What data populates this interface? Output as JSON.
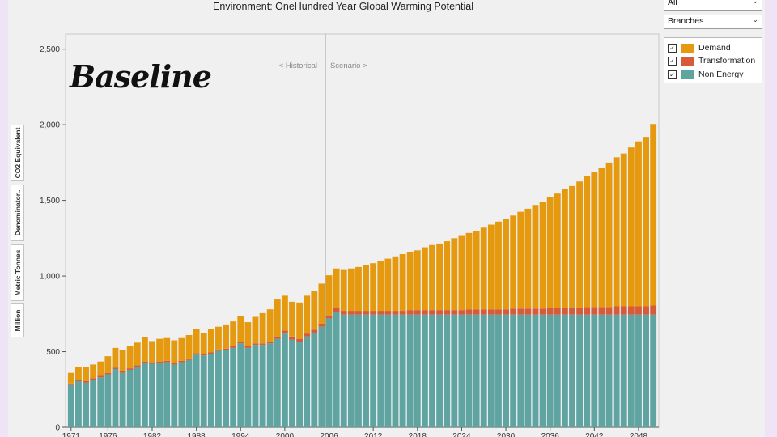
{
  "title": "Environment: OneHundred Year Global Warming Potential",
  "overlay_label": "Baseline",
  "filters": {
    "scope_value": "All",
    "group_value": "Branches"
  },
  "side_tabs": [
    "Million",
    "Metric Tonnes",
    "Denominator..",
    "CO2 Equivalent"
  ],
  "icons": [
    "chevron-down-icon",
    "checkbox-checked-icon"
  ],
  "chart_data": {
    "type": "bar",
    "stacked": true,
    "title": "Environment: OneHundred Year Global Warming Potential",
    "ylabel": "CO2 Equivalent",
    "ylim": [
      0,
      2600
    ],
    "yticks": [
      0,
      500,
      1000,
      1500,
      2000,
      2500
    ],
    "ytick_labels": [
      "0",
      "500",
      "1,000",
      "1,500",
      "2,000",
      "2,500"
    ],
    "x_start": 1971,
    "x_end": 2050,
    "xtick_labels": [
      "1971",
      "1976",
      "1982",
      "1988",
      "1994",
      "2000",
      "2006",
      "2012",
      "2018",
      "2024",
      "2030",
      "2036",
      "2042",
      "2048"
    ],
    "xtick_years": [
      1971,
      1976,
      1982,
      1988,
      1994,
      2000,
      2006,
      2012,
      2018,
      2024,
      2030,
      2036,
      2042,
      2048
    ],
    "annotations": [
      {
        "text": "< Historical",
        "year": 2005
      },
      {
        "text": "Scenario >",
        "year": 2005
      }
    ],
    "divider_year": 2005,
    "legend": {
      "position": "top-right",
      "entries": [
        "Demand",
        "Transformation",
        "Non Energy"
      ]
    },
    "grid": false,
    "colors": {
      "Demand": "#e5990f",
      "Transformation": "#d55b3a",
      "Non Energy": "#5fa4a1"
    },
    "series": [
      {
        "name": "Non Energy",
        "values": [
          280,
          305,
          295,
          315,
          330,
          350,
          385,
          360,
          380,
          400,
          425,
          420,
          425,
          430,
          415,
          430,
          445,
          480,
          475,
          485,
          505,
          510,
          525,
          555,
          525,
          545,
          545,
          555,
          585,
          620,
          580,
          565,
          600,
          625,
          665,
          720,
          765,
          745,
          745,
          745,
          745,
          745,
          745,
          745,
          745,
          745,
          745,
          745,
          745,
          745,
          745,
          745,
          745,
          745,
          745,
          745,
          745,
          745,
          745,
          745,
          745,
          745,
          745,
          745,
          745,
          745,
          745,
          745,
          745,
          745,
          745,
          745,
          745,
          745,
          745,
          745,
          745,
          745,
          745,
          745
        ]
      },
      {
        "name": "Transformation",
        "values": [
          10,
          10,
          10,
          10,
          10,
          10,
          10,
          10,
          10,
          10,
          10,
          10,
          10,
          10,
          10,
          10,
          10,
          10,
          10,
          10,
          10,
          10,
          10,
          10,
          10,
          10,
          10,
          10,
          10,
          20,
          20,
          20,
          20,
          20,
          20,
          20,
          25,
          25,
          25,
          25,
          25,
          25,
          25,
          25,
          25,
          25,
          30,
          30,
          30,
          30,
          30,
          30,
          30,
          30,
          35,
          35,
          35,
          35,
          35,
          35,
          40,
          40,
          40,
          40,
          40,
          45,
          45,
          45,
          45,
          45,
          50,
          50,
          50,
          50,
          55,
          55,
          55,
          55,
          55,
          60
        ]
      },
      {
        "name": "Demand",
        "values": [
          70,
          85,
          95,
          90,
          95,
          110,
          130,
          140,
          150,
          150,
          160,
          140,
          150,
          150,
          150,
          150,
          155,
          160,
          140,
          155,
          150,
          160,
          165,
          170,
          160,
          175,
          200,
          215,
          250,
          230,
          230,
          240,
          250,
          255,
          265,
          265,
          260,
          270,
          280,
          290,
          300,
          315,
          330,
          345,
          360,
          375,
          385,
          395,
          415,
          430,
          440,
          455,
          475,
          490,
          505,
          520,
          540,
          560,
          580,
          595,
          615,
          640,
          660,
          685,
          705,
          730,
          755,
          785,
          805,
          835,
          865,
          890,
          920,
          955,
          985,
          1010,
          1050,
          1090,
          1120,
          1200
        ]
      }
    ]
  }
}
